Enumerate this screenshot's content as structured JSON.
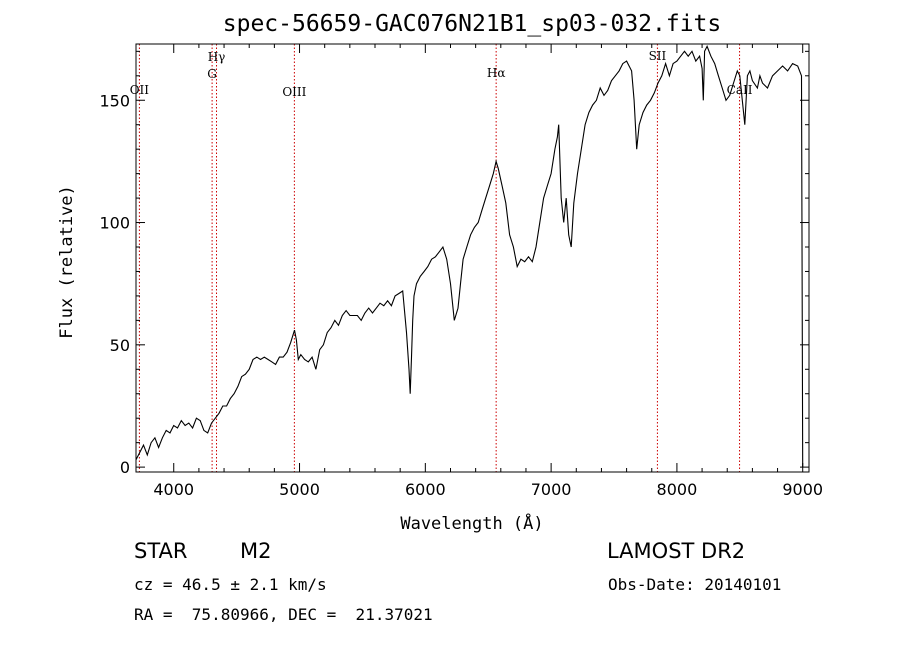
{
  "title": "spec-56659-GAC076N21B1_sp03-032.fits",
  "chart_data": {
    "type": "line",
    "title": "spec-56659-GAC076N21B1_sp03-032.fits",
    "xlabel": "Wavelength (Å)",
    "ylabel": "Flux (relative)",
    "xlim": [
      3700,
      9050
    ],
    "ylim": [
      -2,
      173
    ],
    "x_ticks": [
      4000,
      5000,
      6000,
      7000,
      8000,
      9000
    ],
    "y_ticks": [
      0,
      50,
      100,
      150
    ],
    "x_tick_labels": [
      "4000",
      "5000",
      "6000",
      "7000",
      "8000",
      "9000"
    ],
    "y_tick_labels": [
      "0",
      "50",
      "100",
      "150"
    ],
    "grid": false,
    "reference_lines": [
      {
        "label": "OII",
        "x": 3727
      },
      {
        "label": "Hγ",
        "x": 4340
      },
      {
        "label": "G",
        "x": 4305
      },
      {
        "label": "OIII",
        "x": 4959
      },
      {
        "label": "Hα",
        "x": 6563
      },
      {
        "label": "SII",
        "x": 7845
      },
      {
        "label": "CaII",
        "x": 8498
      }
    ],
    "reference_line_color": "#cc0000",
    "series": [
      {
        "line_color": "#000000",
        "x": [
          3700,
          3730,
          3760,
          3790,
          3820,
          3850,
          3880,
          3910,
          3940,
          3970,
          4000,
          4030,
          4060,
          4090,
          4120,
          4150,
          4180,
          4210,
          4240,
          4270,
          4300,
          4330,
          4360,
          4390,
          4420,
          4450,
          4480,
          4510,
          4540,
          4570,
          4600,
          4630,
          4660,
          4690,
          4720,
          4750,
          4780,
          4810,
          4840,
          4870,
          4900,
          4930,
          4960,
          4975,
          4990,
          5010,
          5040,
          5070,
          5100,
          5130,
          5160,
          5190,
          5220,
          5250,
          5280,
          5310,
          5340,
          5370,
          5400,
          5430,
          5460,
          5490,
          5520,
          5550,
          5580,
          5610,
          5640,
          5670,
          5700,
          5730,
          5760,
          5790,
          5820,
          5850,
          5870,
          5880,
          5890,
          5900,
          5910,
          5930,
          5960,
          5990,
          6020,
          6050,
          6080,
          6110,
          6140,
          6170,
          6200,
          6230,
          6260,
          6280,
          6300,
          6330,
          6360,
          6390,
          6420,
          6450,
          6480,
          6510,
          6540,
          6563,
          6580,
          6610,
          6640,
          6670,
          6700,
          6730,
          6760,
          6790,
          6820,
          6850,
          6880,
          6910,
          6940,
          6970,
          7000,
          7030,
          7050,
          7060,
          7080,
          7100,
          7120,
          7140,
          7160,
          7180,
          7210,
          7240,
          7270,
          7300,
          7330,
          7360,
          7390,
          7420,
          7450,
          7480,
          7510,
          7540,
          7570,
          7600,
          7620,
          7640,
          7660,
          7680,
          7700,
          7730,
          7760,
          7790,
          7820,
          7850,
          7880,
          7910,
          7940,
          7970,
          8000,
          8030,
          8060,
          8090,
          8120,
          8150,
          8180,
          8200,
          8210,
          8220,
          8240,
          8270,
          8300,
          8330,
          8360,
          8390,
          8420,
          8450,
          8480,
          8500,
          8520,
          8540,
          8560,
          8580,
          8600,
          8640,
          8660,
          8680,
          8720,
          8760,
          8800,
          8840,
          8880,
          8920,
          8960,
          8990,
          9000
        ],
        "y": [
          3,
          6,
          9,
          5,
          10,
          12,
          8,
          12,
          15,
          14,
          17,
          16,
          19,
          17,
          18,
          16,
          20,
          19,
          15,
          14,
          18,
          20,
          22,
          25,
          25,
          28,
          30,
          33,
          37,
          38,
          40,
          44,
          45,
          44,
          45,
          44,
          43,
          42,
          45,
          45,
          47,
          51,
          56,
          52,
          44,
          46,
          44,
          43,
          45,
          40,
          48,
          50,
          55,
          57,
          60,
          58,
          62,
          64,
          62,
          62,
          62,
          60,
          63,
          65,
          63,
          65,
          67,
          66,
          68,
          66,
          70,
          71,
          72,
          55,
          40,
          30,
          45,
          60,
          70,
          75,
          78,
          80,
          82,
          85,
          86,
          88,
          90,
          85,
          75,
          60,
          65,
          75,
          85,
          90,
          95,
          98,
          100,
          105,
          110,
          115,
          120,
          125,
          122,
          115,
          108,
          95,
          90,
          82,
          85,
          84,
          86,
          84,
          90,
          100,
          110,
          115,
          120,
          130,
          135,
          140,
          110,
          100,
          110,
          95,
          90,
          108,
          120,
          130,
          140,
          145,
          148,
          150,
          155,
          152,
          154,
          158,
          160,
          162,
          165,
          166,
          164,
          162,
          150,
          130,
          140,
          145,
          148,
          150,
          153,
          157,
          160,
          165,
          160,
          165,
          166,
          168,
          170,
          168,
          170,
          166,
          168,
          163,
          150,
          170,
          172,
          168,
          165,
          160,
          155,
          150,
          152,
          157,
          162,
          160,
          150,
          140,
          160,
          162,
          158,
          155,
          160,
          157,
          155,
          160,
          162,
          164,
          162,
          165,
          164,
          160,
          0
        ]
      }
    ]
  },
  "info": {
    "object_type": "STAR",
    "subclass": "M2",
    "survey": "LAMOST DR2",
    "cz": "cz = 46.5 ± 2.1 km/s",
    "obs_date": "Obs-Date: 20140101",
    "coords": "RA =  75.80966, DEC =  21.37021"
  }
}
